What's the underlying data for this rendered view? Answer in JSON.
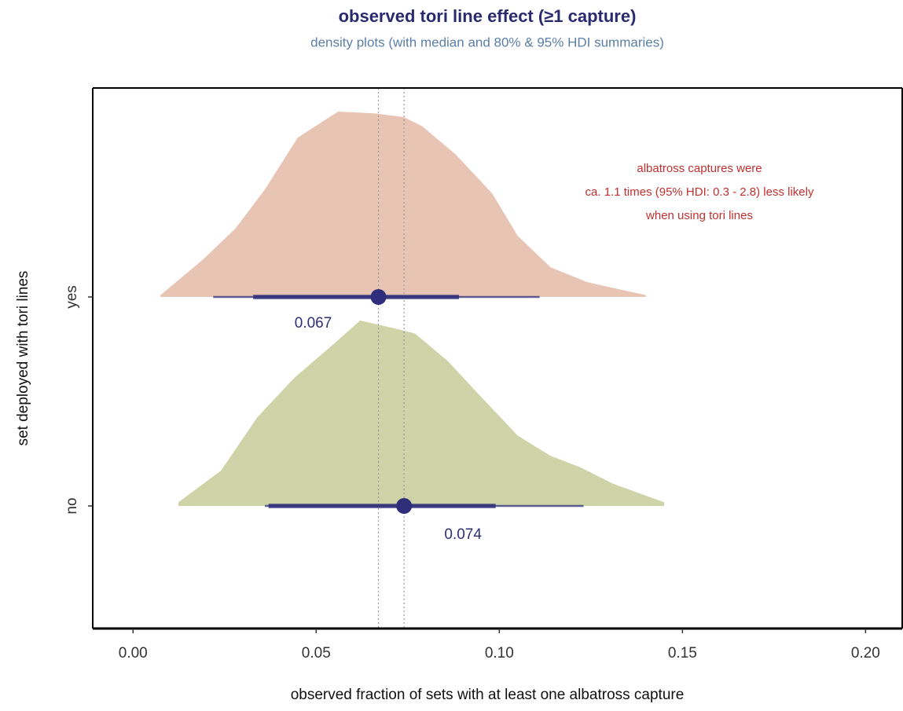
{
  "chart_data": {
    "type": "halfeye",
    "title": "observed tori line effect (≥1 capture)",
    "subtitle": "density plots (with median and 80% & 95% HDI summaries)",
    "xlabel": "observed fraction of sets with at least one albatross capture",
    "ylabel": "set deployed with tori lines",
    "annotation": [
      "albatross captures were",
      "ca. 1.1 times (95% HDI: 0.3 - 2.8) less likely",
      "when using tori lines"
    ],
    "categories": [
      "no",
      "yes"
    ],
    "xlim": [
      -0.011,
      0.21
    ],
    "xticks": [
      {
        "value": 0,
        "label": "0.00"
      },
      {
        "value": 0.05,
        "label": "0.05"
      },
      {
        "value": 0.1,
        "label": "0.10"
      },
      {
        "value": 0.15,
        "label": "0.15"
      },
      {
        "value": 0.2,
        "label": "0.20"
      }
    ],
    "interval_color": "#2e2e7a",
    "groups": [
      {
        "color": "#cfd3a8",
        "x": [
          0.0124,
          0.024,
          0.034,
          0.044,
          0.054,
          0.062,
          0.071,
          0.077,
          0.086,
          0.094,
          0.105,
          0.114,
          0.122,
          0.131,
          0.145
        ],
        "density": [
          0.02,
          0.19,
          0.48,
          0.69,
          0.86,
          1.0,
          0.96,
          0.93,
          0.78,
          0.61,
          0.38,
          0.27,
          0.21,
          0.12,
          0.02
        ],
        "median": 0.074,
        "hdi80": [
          0.037,
          0.099
        ],
        "hdi95": [
          0.036,
          0.123
        ]
      },
      {
        "color": "#e8c4b4",
        "x": [
          0.0075,
          0.019,
          0.028,
          0.036,
          0.045,
          0.056,
          0.066,
          0.074,
          0.079,
          0.088,
          0.098,
          0.105,
          0.114,
          0.124,
          0.133,
          0.14
        ],
        "density": [
          0.01,
          0.2,
          0.37,
          0.58,
          0.86,
          1.0,
          0.99,
          0.97,
          0.92,
          0.77,
          0.56,
          0.33,
          0.16,
          0.08,
          0.04,
          0.01
        ],
        "median": 0.067,
        "hdi80": [
          0.0328,
          0.089
        ],
        "hdi95": [
          0.0219,
          0.111
        ]
      }
    ]
  }
}
